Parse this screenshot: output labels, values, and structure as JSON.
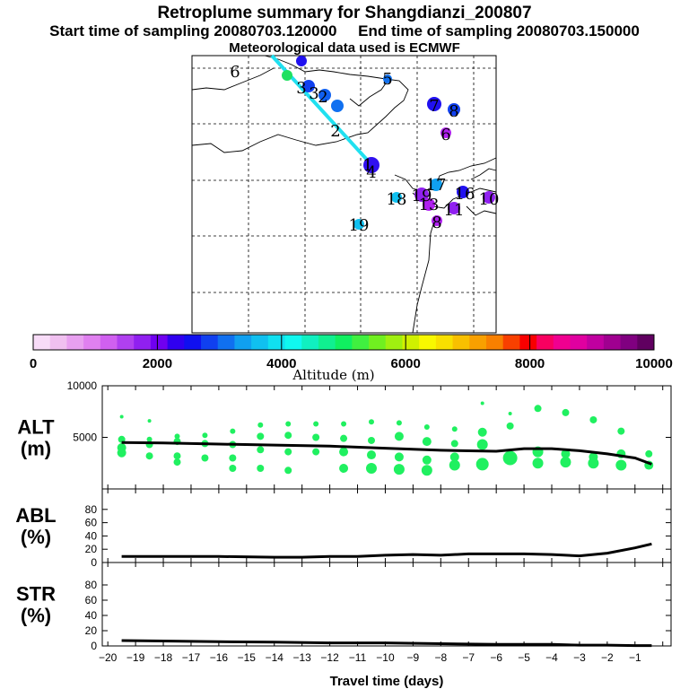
{
  "header": {
    "title": "Retroplume summary for Shangdianzi_200807",
    "sampling": "Start time of sampling 20080703.120000     End time of sampling 20080703.150000",
    "met": "Meteorological data used is ECMWF"
  },
  "colorbar": {
    "colors": [
      "#f8dcf8",
      "#f0c0f0",
      "#e8a0f0",
      "#e080f0",
      "#d060f0",
      "#b040f0",
      "#9020f0",
      "#7000f0",
      "#3000f0",
      "#1010f0",
      "#1040f0",
      "#1070f0",
      "#10a0f0",
      "#10c0f0",
      "#10e0f0",
      "#10f8f0",
      "#10f0c0",
      "#10f090",
      "#10f060",
      "#40f040",
      "#70f020",
      "#a0f010",
      "#d0f000",
      "#f8f800",
      "#f8e000",
      "#f8c000",
      "#f8a000",
      "#f88000",
      "#f84000",
      "#f80000",
      "#f80060",
      "#f00090",
      "#e000a0",
      "#c000a0",
      "#a00090",
      "#800080",
      "#600060"
    ],
    "tick_labels": [
      "0",
      "2000",
      "4000",
      "6000",
      "8000",
      "10000"
    ],
    "label": "Altitude (m)"
  },
  "map_labels": [
    {
      "text": "6",
      "color": "#111"
    },
    {
      "text": "3",
      "color": "#111"
    },
    {
      "text": "3",
      "color": "#111"
    },
    {
      "text": "2",
      "color": "#111"
    },
    {
      "text": "2",
      "color": "#111"
    },
    {
      "text": "1",
      "color": "#111"
    },
    {
      "text": "4",
      "color": "#111"
    },
    {
      "text": "5",
      "color": "#111"
    },
    {
      "text": "7",
      "color": "#111"
    },
    {
      "text": "8",
      "color": "#111"
    },
    {
      "text": "6",
      "color": "#111"
    },
    {
      "text": "17",
      "color": "#111"
    },
    {
      "text": "18",
      "color": "#111"
    },
    {
      "text": "19",
      "color": "#111"
    },
    {
      "text": "13",
      "color": "#111"
    },
    {
      "text": "11",
      "color": "#111"
    },
    {
      "text": "8",
      "color": "#111"
    },
    {
      "text": "16",
      "color": "#111"
    },
    {
      "text": "10",
      "color": "#111"
    },
    {
      "text": "19",
      "color": "#111"
    }
  ],
  "chart_data": [
    {
      "type": "scatter",
      "panel": "ALT",
      "ylabel": "ALT\n(m)",
      "ylabel_lines": [
        "ALT",
        "(m)"
      ],
      "ylim": [
        0,
        10000
      ],
      "yticks": [
        5000,
        10000
      ],
      "ytick_labels": [
        "5000",
        "10000"
      ],
      "xlim": [
        -20.2,
        0.3
      ],
      "mean_line": {
        "x": [
          -19.5,
          -18,
          -16,
          -14,
          -12,
          -10,
          -8,
          -6,
          -5,
          -4,
          -3,
          -2,
          -1,
          -0.4
        ],
        "y": [
          4500,
          4450,
          4350,
          4250,
          4150,
          3950,
          3750,
          3650,
          3900,
          3900,
          3700,
          3400,
          3000,
          2400
        ]
      },
      "points": {
        "x": [
          -19.5,
          -19.5,
          -19.5,
          -19.5,
          -18.5,
          -18.5,
          -18.5,
          -18.5,
          -17.5,
          -17.5,
          -17.5,
          -17.5,
          -16.5,
          -16.5,
          -16.5,
          -15.5,
          -15.5,
          -15.5,
          -15.5,
          -14.5,
          -14.5,
          -14.5,
          -14.5,
          -13.5,
          -13.5,
          -13.5,
          -13.5,
          -12.5,
          -12.5,
          -12.5,
          -11.5,
          -11.5,
          -11.5,
          -11.5,
          -10.5,
          -10.5,
          -10.5,
          -10.5,
          -9.5,
          -9.5,
          -9.5,
          -9.5,
          -8.5,
          -8.5,
          -8.5,
          -8.5,
          -7.5,
          -7.5,
          -7.5,
          -7.5,
          -6.5,
          -6.5,
          -6.5,
          -6.5,
          -5.5,
          -5.5,
          -5.5,
          -4.5,
          -4.5,
          -4.5,
          -3.5,
          -3.5,
          -3.5,
          -2.5,
          -2.5,
          -2.5,
          -1.5,
          -1.5,
          -1.5,
          -0.5,
          -0.5
        ],
        "y": [
          7000,
          4800,
          4000,
          3500,
          6600,
          4800,
          4300,
          3200,
          5100,
          4600,
          3200,
          2600,
          5200,
          4400,
          3000,
          5600,
          4300,
          3000,
          2000,
          6200,
          5100,
          3800,
          2000,
          6300,
          5200,
          3600,
          1800,
          6300,
          5000,
          3600,
          6300,
          4900,
          3600,
          2000,
          6500,
          4700,
          3300,
          2000,
          6400,
          5100,
          3100,
          1900,
          6000,
          4600,
          2800,
          1800,
          5800,
          4400,
          3100,
          2300,
          8300,
          5500,
          4300,
          2400,
          7300,
          6100,
          3000,
          7800,
          3600,
          2500,
          7400,
          3400,
          2600,
          6700,
          3100,
          2500,
          5600,
          3400,
          2300,
          3400,
          2300
        ],
        "r": [
          2,
          4,
          5,
          5,
          2,
          3,
          4,
          4,
          3,
          4,
          4,
          4,
          3,
          4,
          4,
          3,
          4,
          4,
          4,
          3,
          4,
          4,
          4,
          3,
          4,
          4,
          4,
          3,
          4,
          4,
          3,
          4,
          5,
          5,
          3,
          4,
          5,
          6,
          3,
          5,
          5,
          6,
          3,
          5,
          5,
          6,
          3,
          4,
          5,
          6,
          2,
          5,
          6,
          7,
          2,
          4,
          8,
          4,
          6,
          6,
          4,
          5,
          6,
          4,
          5,
          6,
          4,
          5,
          6,
          4,
          5
        ]
      }
    },
    {
      "type": "line",
      "panel": "ABL",
      "ylabel_lines": [
        "ABL",
        "(%)"
      ],
      "ylim": [
        0,
        100
      ],
      "yticks": [
        0,
        20,
        40,
        60,
        80
      ],
      "ytick_labels": [
        "0",
        "20",
        "40",
        "60",
        "80"
      ],
      "series": [
        {
          "name": "ABL",
          "x": [
            -19.5,
            -18,
            -16,
            -14,
            -13,
            -12,
            -11,
            -10,
            -9,
            -8,
            -7,
            -6,
            -5,
            -4,
            -3,
            -2,
            -1,
            -0.4
          ],
          "y": [
            9,
            9,
            9,
            8,
            8,
            9,
            9,
            11,
            12,
            11,
            13,
            13,
            13,
            12,
            10,
            14,
            22,
            28
          ]
        }
      ]
    },
    {
      "type": "line",
      "panel": "STR",
      "ylabel_lines": [
        "STR",
        "(%)"
      ],
      "ylim": [
        0,
        100
      ],
      "yticks": [
        0,
        20,
        40,
        60,
        80
      ],
      "ytick_labels": [
        "0",
        "20",
        "40",
        "60",
        "80"
      ],
      "xlabel": "Travel time (days)",
      "xticks": [
        -20,
        -19,
        -18,
        -17,
        -16,
        -15,
        -14,
        -13,
        -12,
        -11,
        -10,
        -9,
        -8,
        -7,
        -6,
        -5,
        -4,
        -3,
        -2,
        -1
      ],
      "xtick_labels": [
        "−20",
        "−19",
        "−18",
        "−17",
        "−16",
        "−15",
        "−14",
        "−13",
        "−12",
        "−11",
        "−10",
        "−9",
        "−8",
        "−7",
        "−6",
        "−5",
        "−4",
        "−3",
        "−2",
        "−1"
      ],
      "series": [
        {
          "name": "STR",
          "x": [
            -19.5,
            -18,
            -16,
            -14,
            -12,
            -10,
            -8,
            -6,
            -4,
            -3,
            -2,
            -1,
            -0.4
          ],
          "y": [
            7,
            6.5,
            5.5,
            5,
            4,
            4,
            3,
            2,
            2,
            1,
            1,
            0.5,
            0.5
          ]
        }
      ]
    }
  ]
}
